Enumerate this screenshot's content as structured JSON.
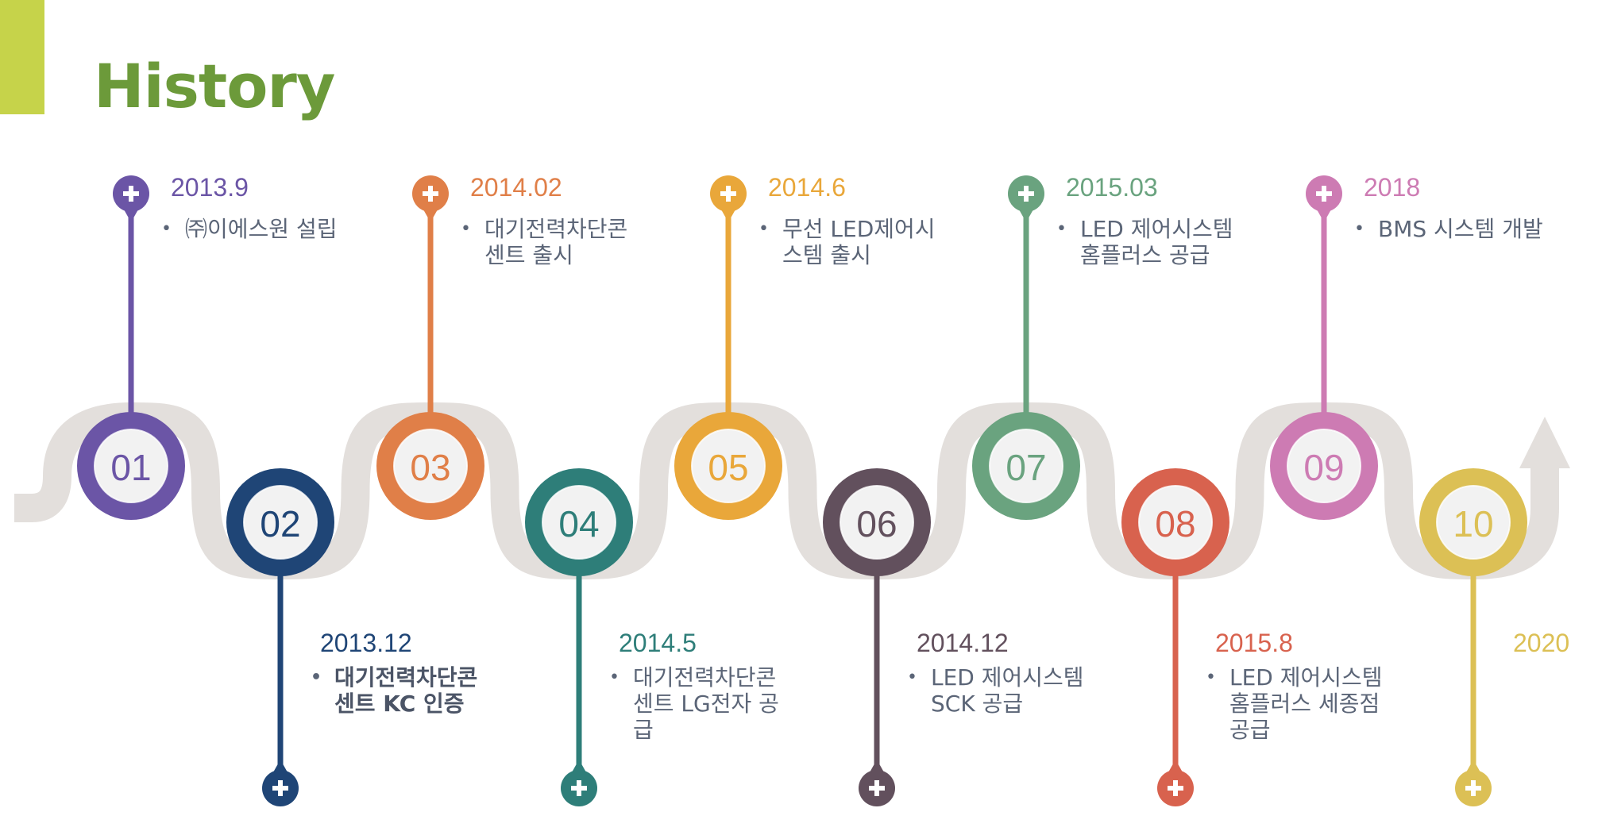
{
  "title": "History",
  "milestones": [
    {
      "num": "01",
      "date": "2013.9",
      "desc": "㈜이에스원 설립",
      "color": "#6b55a6",
      "bold": false
    },
    {
      "num": "02",
      "date": "2013.12",
      "desc": "대기전력차단콘 센트 KC 인증",
      "color": "#1f4576",
      "bold": true
    },
    {
      "num": "03",
      "date": "2014.02",
      "desc": "대기전력차단콘 센트 출시",
      "color": "#e07f48",
      "bold": false
    },
    {
      "num": "04",
      "date": "2014.5",
      "desc": "대기전력차단콘 센트 LG전자 공 급",
      "color": "#2e7e79",
      "bold": false
    },
    {
      "num": "05",
      "date": "2014.6",
      "desc": "무선 LED제어시 스템 출시",
      "color": "#e9a73a",
      "bold": false
    },
    {
      "num": "06",
      "date": "2014.12",
      "desc": "LED 제어시스템 SCK 공급",
      "color": "#62505d",
      "bold": false
    },
    {
      "num": "07",
      "date": "2015.03",
      "desc": "LED 제어시스템 홈플러스 공급",
      "color": "#6aa37f",
      "bold": false
    },
    {
      "num": "08",
      "date": "2015.8",
      "desc": "LED 제어시스템 홈플러스 세종점 공급",
      "color": "#d8624e",
      "bold": false
    },
    {
      "num": "09",
      "date": "2018",
      "desc": "BMS 시스템 개발",
      "color": "#cd7bb3",
      "bold": false
    },
    {
      "num": "10",
      "date": "2020",
      "desc": "",
      "color": "#dcc055",
      "bold": false
    }
  ]
}
